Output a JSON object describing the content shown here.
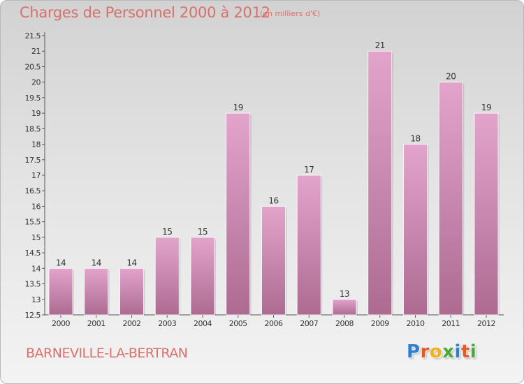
{
  "header": {
    "title": "Charges de Personnel 2000 à 2012",
    "unit": "(en milliers d'€)"
  },
  "footer": {
    "commune": "BARNEVILLE-LA-BERTRAN",
    "logo_letters": [
      {
        "ch": "P",
        "color": "#2f7fd0"
      },
      {
        "ch": "r",
        "color": "#e65a2a"
      },
      {
        "ch": "o",
        "color": "#f2b21b"
      },
      {
        "ch": "x",
        "color": "#4aa83c"
      },
      {
        "ch": "i",
        "color": "#2f7fd0"
      },
      {
        "ch": "t",
        "color": "#e65a2a"
      },
      {
        "ch": "i",
        "color": "#4aa83c"
      }
    ]
  },
  "colors": {
    "bar_top": "#e3a4cc",
    "bar_bottom": "#ad6b91",
    "text": "#d8706c",
    "axis_text": "#333333"
  },
  "chart_data": {
    "type": "bar",
    "title": "Charges de Personnel 2000 à 2012",
    "subtitle": "(en milliers d'€)",
    "categories": [
      "2000",
      "2001",
      "2002",
      "2003",
      "2004",
      "2005",
      "2006",
      "2007",
      "2008",
      "2009",
      "2010",
      "2011",
      "2012"
    ],
    "values": [
      14,
      14,
      14,
      15,
      15,
      19,
      16,
      17,
      13,
      21,
      18,
      20,
      19
    ],
    "ylim": [
      12.5,
      21.5
    ],
    "yticks": [
      "12.5",
      "13",
      "13.5",
      "14",
      "14.5",
      "15",
      "15.5",
      "16",
      "16.5",
      "17",
      "17.5",
      "18",
      "18.5",
      "19",
      "19.5",
      "20",
      "20.5",
      "21",
      "21.5"
    ],
    "grid": false,
    "xlabel": "",
    "ylabel": ""
  }
}
